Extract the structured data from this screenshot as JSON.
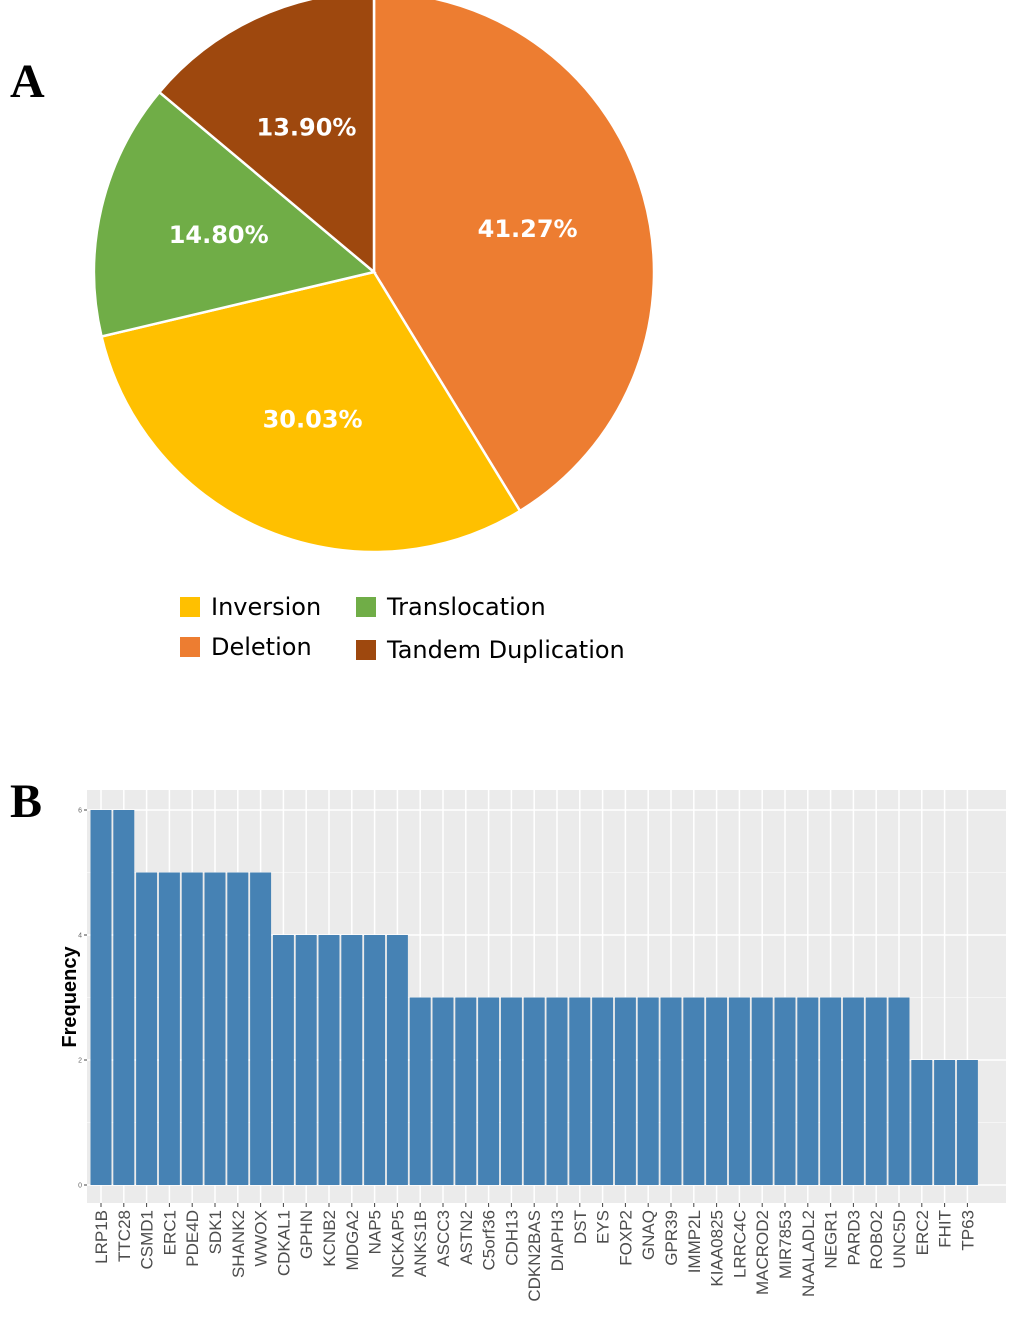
{
  "panel_a_letter": "A",
  "panel_b_letter": "B",
  "colors": {
    "inversion": "#FFC000",
    "deletion": "#ED7D31",
    "translocation": "#70AD47",
    "tandem_duplication": "#9E480E",
    "bar": "#4682B4",
    "panel_bg": "#EBEBEB",
    "grid": "#FFFFFF"
  },
  "chart_data": [
    {
      "type": "pie",
      "slices": [
        {
          "name": "Deletion",
          "value": 41.27,
          "label": "41.27%",
          "color": "#ED7D31"
        },
        {
          "name": "Inversion",
          "value": 30.03,
          "label": "30.03%",
          "color": "#FFC000"
        },
        {
          "name": "Translocation",
          "value": 14.8,
          "label": "14.80%",
          "color": "#70AD47"
        },
        {
          "name": "Tandem Duplication",
          "value": 13.9,
          "label": "13.90%",
          "color": "#9E480E"
        }
      ],
      "start_angle_deg": 0,
      "direction": "clockwise",
      "legend": [
        {
          "label": "Inversion",
          "color": "#FFC000"
        },
        {
          "label": "Translocation",
          "color": "#70AD47"
        },
        {
          "label": "Deletion",
          "color": "#ED7D31"
        },
        {
          "label": "Tandem Duplication",
          "color": "#9E480E"
        }
      ],
      "legend_placement": "bottom"
    },
    {
      "type": "bar",
      "xlabel": "",
      "ylabel": "Frequency",
      "ylim": [
        0,
        6
      ],
      "yticks": [
        0,
        2,
        4,
        6
      ],
      "grid": true,
      "categories": [
        "LRP1B",
        "TTC28",
        "CSMD1",
        "ERC1",
        "PDE4D",
        "SDK1",
        "SHANK2",
        "WWOX",
        "CDKAL1",
        "GPHN",
        "KCNB2",
        "MDGA2",
        "NAP5",
        "NCKAP5",
        "ANKS1B",
        "ASCC3",
        "ASTN2",
        "C5orf36",
        "CDH13",
        "CDKN2BAS",
        "DIAPH3",
        "DST",
        "EYS",
        "FOXP2",
        "GNAQ",
        "GPR39",
        "IMMP2L",
        "KIAA0825",
        "LRRC4C",
        "MACROD2",
        "MIR7853",
        "NAALADL2",
        "NEGR1",
        "PARD3",
        "ROBO2",
        "UNC5D",
        "ERC2",
        "FHIT",
        "TP63"
      ],
      "values": [
        6,
        6,
        5,
        5,
        5,
        5,
        5,
        5,
        4,
        4,
        4,
        4,
        4,
        4,
        3,
        3,
        3,
        3,
        3,
        3,
        3,
        3,
        3,
        3,
        3,
        3,
        3,
        3,
        3,
        3,
        3,
        3,
        3,
        3,
        3,
        3,
        2,
        2,
        2
      ]
    }
  ]
}
